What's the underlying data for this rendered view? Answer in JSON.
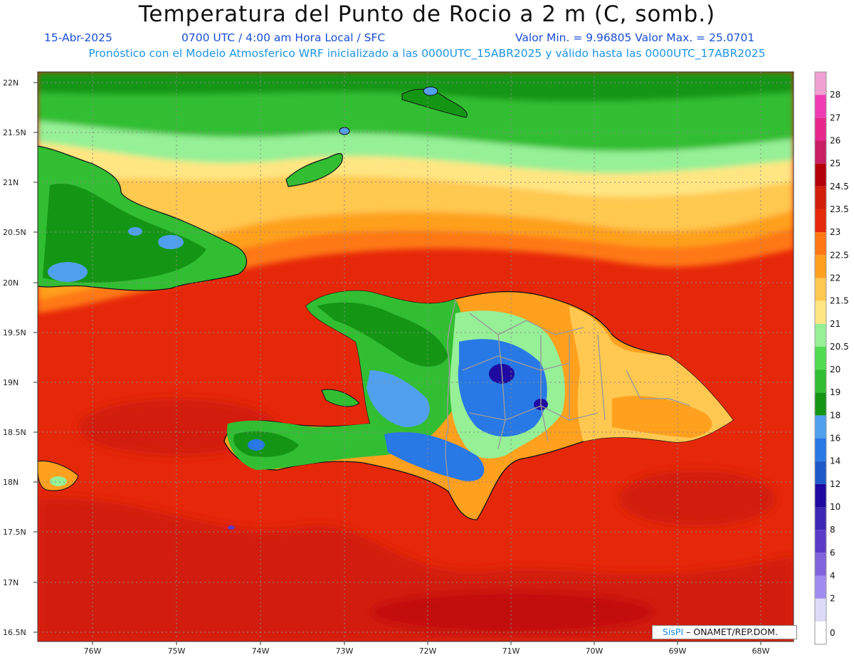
{
  "header": {
    "title": "Temperatura del Punto de Rocio a 2 m (C, somb.)",
    "date": "15-Abr-2025",
    "time": "0700 UTC / 4:00 am Hora Local / SFC",
    "minmax": "Valor Min. = 9.96805  Valor Max. = 25.0701",
    "subtitle": "Pronóstico con el Modelo Atmosferico WRF inicializado a las 0000UTC_15ABR2025 y válido hasta las  0000UTC_17ABR2025"
  },
  "axes": {
    "lat_labels": [
      "22N",
      "21.5N",
      "21N",
      "20.5N",
      "20N",
      "19.5N",
      "19N",
      "18.5N",
      "18N",
      "17.5N",
      "17N",
      "16.5N"
    ],
    "lon_labels": [
      "76W",
      "75W",
      "74W",
      "73W",
      "72W",
      "71W",
      "70W",
      "69W",
      "68W"
    ]
  },
  "legend": {
    "levels": [
      "0",
      "2",
      "4",
      "6",
      "8",
      "10",
      "12",
      "14",
      "16",
      "18",
      "19",
      "20",
      "20.5",
      "21",
      "21.5",
      "22",
      "22.5",
      "23",
      "23.5",
      "24.5",
      "25",
      "26",
      "27",
      "28"
    ],
    "colors": [
      "#ffffff",
      "#dcdcf8",
      "#a08cf0",
      "#8064dc",
      "#5a3cc8",
      "#3c28b4",
      "#1e0aa0",
      "#1e5ac8",
      "#2878e6",
      "#50a0f0",
      "#149614",
      "#32be32",
      "#50dc50",
      "#96f096",
      "#ffe682",
      "#ffc850",
      "#ffa01e",
      "#ff7814",
      "#e6280a",
      "#d21e0a",
      "#b4000a",
      "#c81e64",
      "#e6288c",
      "#f03cb4",
      "#f0a0d2"
    ]
  },
  "credit": {
    "brand": "SisPI",
    "text": " – ONAMET/REP.DOM."
  },
  "colors": {
    "humid_sea": "#e6280a",
    "very_humid_sea": "#d21e0a",
    "band_orange": "#ffa01e",
    "band_yellow": "#ffe682",
    "band_light_green": "#96f096",
    "band_green": "#32be32",
    "mountain_blue": "#50a0f0",
    "coastline": "#111111",
    "borders": "#9a9a9a"
  }
}
